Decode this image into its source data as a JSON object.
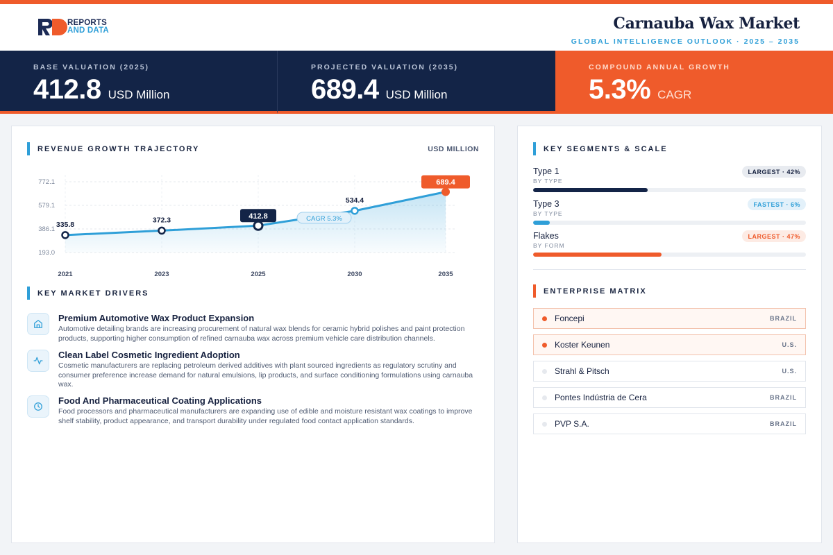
{
  "brand": {
    "line1": "REPORTS",
    "line2": "AND DATA"
  },
  "header": {
    "title": "Carnauba Wax Market",
    "subtitle": "GLOBAL INTELLIGENCE OUTLOOK  ·  2025 – 2035"
  },
  "colors": {
    "accent": "#ef5b2b",
    "navy": "#132447",
    "blue": "#2f9fd8"
  },
  "kpis": [
    {
      "label": "BASE VALUATION (2025)",
      "value": "412.8",
      "unit": "USD Million"
    },
    {
      "label": "PROJECTED VALUATION (2035)",
      "value": "689.4",
      "unit": "USD Million"
    },
    {
      "label": "COMPOUND ANNUAL GROWTH",
      "value": "5.3%",
      "unit": "CAGR"
    }
  ],
  "revenue_section": {
    "title": "REVENUE GROWTH TRAJECTORY",
    "unit": "USD MILLION",
    "cagr_label": "CAGR 5.3%"
  },
  "chart_data": {
    "type": "area",
    "title": "",
    "xlabel": "",
    "ylabel": "",
    "categories": [
      "2021",
      "2023",
      "2025",
      "2030",
      "2035"
    ],
    "values": [
      335.8,
      372.3,
      412.8,
      534.4,
      689.4
    ],
    "value_labels": [
      "335.8",
      "372.3",
      "412.8",
      "534.4",
      "689.4"
    ],
    "y_ticks": [
      "772.1",
      "579.1",
      "386.1",
      "193.0"
    ],
    "y_tick_values": [
      772.1,
      579.1,
      386.1,
      193.0
    ],
    "ylim": [
      193.0,
      772.1
    ],
    "grid": true
  },
  "drivers_section": {
    "title": "KEY MARKET DRIVERS",
    "items": [
      {
        "icon": "home-icon",
        "title": "Premium Automotive Wax Product Expansion",
        "desc": "Automotive detailing brands are increasing procurement of natural wax blends for ceramic hybrid polishes and paint protection products, supporting higher consumption of refined carnauba wax across premium vehicle care distribution channels."
      },
      {
        "icon": "activity-icon",
        "title": "Clean Label Cosmetic Ingredient Adoption",
        "desc": "Cosmetic manufacturers are replacing petroleum derived additives with plant sourced ingredients as regulatory scrutiny and consumer preference increase demand for natural emulsions, lip products, and surface conditioning formulations using carnauba wax."
      },
      {
        "icon": "clock-icon",
        "title": "Food And Pharmaceutical Coating Applications",
        "desc": "Food processors and pharmaceutical manufacturers are expanding use of edible and moisture resistant wax coatings to improve shelf stability, product appearance, and transport durability under regulated food contact application standards."
      }
    ]
  },
  "segments_section": {
    "title": "KEY SEGMENTS & SCALE",
    "items": [
      {
        "name": "Type 1",
        "sub": "BY TYPE",
        "badge": "LARGEST · 42%",
        "share": 42,
        "style": "navy"
      },
      {
        "name": "Type 3",
        "sub": "BY TYPE",
        "badge": "FASTEST · 6%",
        "share": 6,
        "style": "blue"
      },
      {
        "name": "Flakes",
        "sub": "BY FORM",
        "badge": "LARGEST · 47%",
        "share": 47,
        "style": "orange"
      }
    ]
  },
  "enterprise_section": {
    "title": "ENTERPRISE MATRIX",
    "items": [
      {
        "name": "Foncepi",
        "country": "BRAZIL",
        "highlight": true
      },
      {
        "name": "Koster Keunen",
        "country": "U.S.",
        "highlight": true
      },
      {
        "name": "Strahl & Pitsch",
        "country": "U.S.",
        "highlight": false
      },
      {
        "name": "Pontes Indústria de Cera",
        "country": "BRAZIL",
        "highlight": false
      },
      {
        "name": "PVP S.A.",
        "country": "BRAZIL",
        "highlight": false
      }
    ]
  }
}
